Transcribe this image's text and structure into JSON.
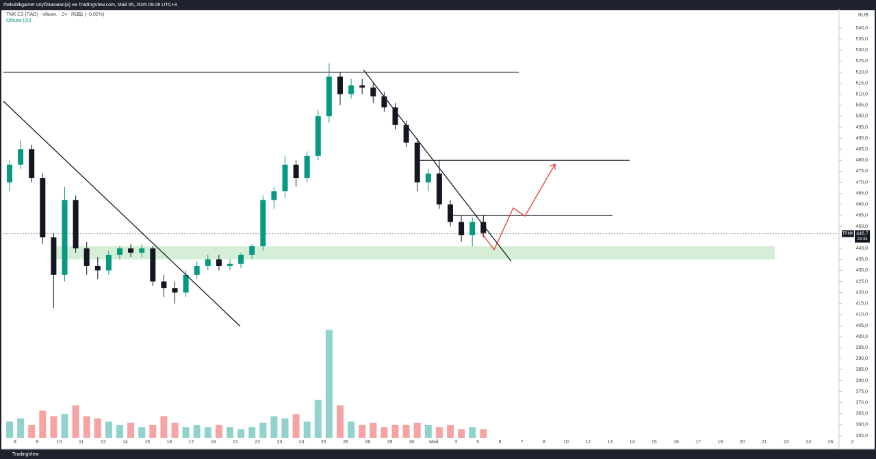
{
  "chart_data": {
    "type": "candlestick",
    "header": "thekubikgamer опубликовал(а) на TradingView.com, Май 05, 2025 09:26 UTC+3",
    "title": "ТМК СЗ (ПАО) · обыкн. · 2ч · RUS",
    "change": "−0,1 (−0,02%)",
    "volume_label": "Объем (20)",
    "currency": "RUB",
    "ticker": "TRMK",
    "last_price": {
      "value": 446.7,
      "label": "446,7"
    },
    "countdown": "23:33",
    "brand": "TradingView",
    "up_color": "#089981",
    "down_color": "#131722",
    "volume_up_color": "#8fd3cc",
    "volume_down_color": "#f5a3a3",
    "zone": [
      435,
      441
    ],
    "levels": [
      520,
      480,
      455
    ],
    "x_labels": [
      "8",
      "9",
      "10",
      "11",
      "12",
      "14",
      "15",
      "16",
      "17",
      "18",
      "21",
      "22",
      "23",
      "24",
      "25",
      "26",
      "28",
      "29",
      "30",
      "Май",
      "3",
      "5",
      "6",
      "7",
      "8",
      "10",
      "12",
      "13",
      "14",
      "15",
      "16",
      "17",
      "19",
      "20",
      "21",
      "22",
      "23",
      "26",
      "2"
    ],
    "open": [
      470,
      478,
      485,
      472,
      445,
      428,
      462,
      440,
      432,
      430,
      437,
      440,
      438,
      440,
      425,
      422,
      420,
      428,
      432,
      435,
      432,
      433,
      437,
      441,
      462,
      466,
      478,
      472,
      482,
      500,
      518,
      510,
      514,
      513,
      509,
      504,
      496,
      488,
      470,
      474,
      460,
      452,
      446,
      452
    ],
    "high": [
      480,
      489,
      487,
      474,
      447,
      468,
      464,
      443,
      436,
      439,
      441,
      442,
      442,
      441,
      428,
      425,
      430,
      434,
      437,
      437,
      435,
      438,
      442,
      464,
      468,
      482,
      480,
      484,
      503,
      524,
      520,
      517,
      517,
      515,
      511,
      506,
      498,
      490,
      476,
      480,
      462,
      455,
      454,
      455
    ],
    "low": [
      466,
      476,
      470,
      442,
      413,
      425,
      438,
      428,
      426,
      428,
      435,
      436,
      436,
      423,
      418,
      415,
      418,
      426,
      430,
      430,
      430,
      431,
      435,
      439,
      458,
      463,
      468,
      470,
      480,
      497,
      505,
      508,
      510,
      506,
      502,
      494,
      486,
      466,
      466,
      458,
      450,
      443,
      441,
      445
    ],
    "close": [
      478,
      485,
      472,
      445,
      428,
      462,
      440,
      432,
      430,
      437,
      440,
      438,
      440,
      425,
      422,
      420,
      428,
      432,
      435,
      432,
      433,
      437,
      441,
      462,
      466,
      478,
      472,
      482,
      500,
      518,
      510,
      514,
      513,
      509,
      504,
      496,
      488,
      470,
      474,
      460,
      452,
      446,
      452,
      447
    ],
    "volume": [
      15,
      18,
      12,
      25,
      20,
      22,
      30,
      20,
      18,
      15,
      12,
      14,
      10,
      12,
      20,
      14,
      10,
      12,
      10,
      12,
      10,
      8,
      10,
      14,
      20,
      18,
      22,
      15,
      35,
      100,
      30,
      15,
      12,
      14,
      10,
      12,
      12,
      14,
      12,
      10,
      12,
      8,
      10,
      8
    ],
    "ylim": [
      355,
      540
    ],
    "yticks": [
      {
        "value": 540,
        "label": "540,0"
      },
      {
        "value": 535,
        "label": "535,0"
      },
      {
        "value": 530,
        "label": "530,0"
      },
      {
        "value": 525,
        "label": "525,0"
      },
      {
        "value": 520,
        "label": "520,0"
      },
      {
        "value": 515,
        "label": "515,0"
      },
      {
        "value": 510,
        "label": "510,0"
      },
      {
        "value": 505,
        "label": "505,0"
      },
      {
        "value": 500,
        "label": "500,0"
      },
      {
        "value": 495,
        "label": "495,0"
      },
      {
        "value": 490,
        "label": "490,0"
      },
      {
        "value": 485,
        "label": "485,0"
      },
      {
        "value": 480,
        "label": "480,0"
      },
      {
        "value": 475,
        "label": "475,0"
      },
      {
        "value": 470,
        "label": "470,0"
      },
      {
        "value": 465,
        "label": "465,0"
      },
      {
        "value": 460,
        "label": "460,0"
      },
      {
        "value": 455,
        "label": "455,0"
      },
      {
        "value": 450,
        "label": "450,0"
      },
      {
        "value": 445,
        "label": "445,0"
      },
      {
        "value": 440,
        "label": "440,0"
      },
      {
        "value": 435,
        "label": "435,0"
      },
      {
        "value": 430,
        "label": "430,0"
      },
      {
        "value": 425,
        "label": "425,0"
      },
      {
        "value": 420,
        "label": "420,0"
      },
      {
        "value": 415,
        "label": "415,0"
      },
      {
        "value": 410,
        "label": "410,0"
      },
      {
        "value": 405,
        "label": "405,0"
      },
      {
        "value": 400,
        "label": "400,0"
      },
      {
        "value": 395,
        "label": "395,0"
      },
      {
        "value": 390,
        "label": "390,0"
      },
      {
        "value": 385,
        "label": "385,0"
      },
      {
        "value": 380,
        "label": "380,0"
      },
      {
        "value": 375,
        "label": "375,0"
      },
      {
        "value": 370,
        "label": "370,0"
      },
      {
        "value": 365,
        "label": "365,0"
      },
      {
        "value": 360,
        "label": "360,0"
      },
      {
        "value": 355,
        "label": "355,0"
      }
    ]
  }
}
